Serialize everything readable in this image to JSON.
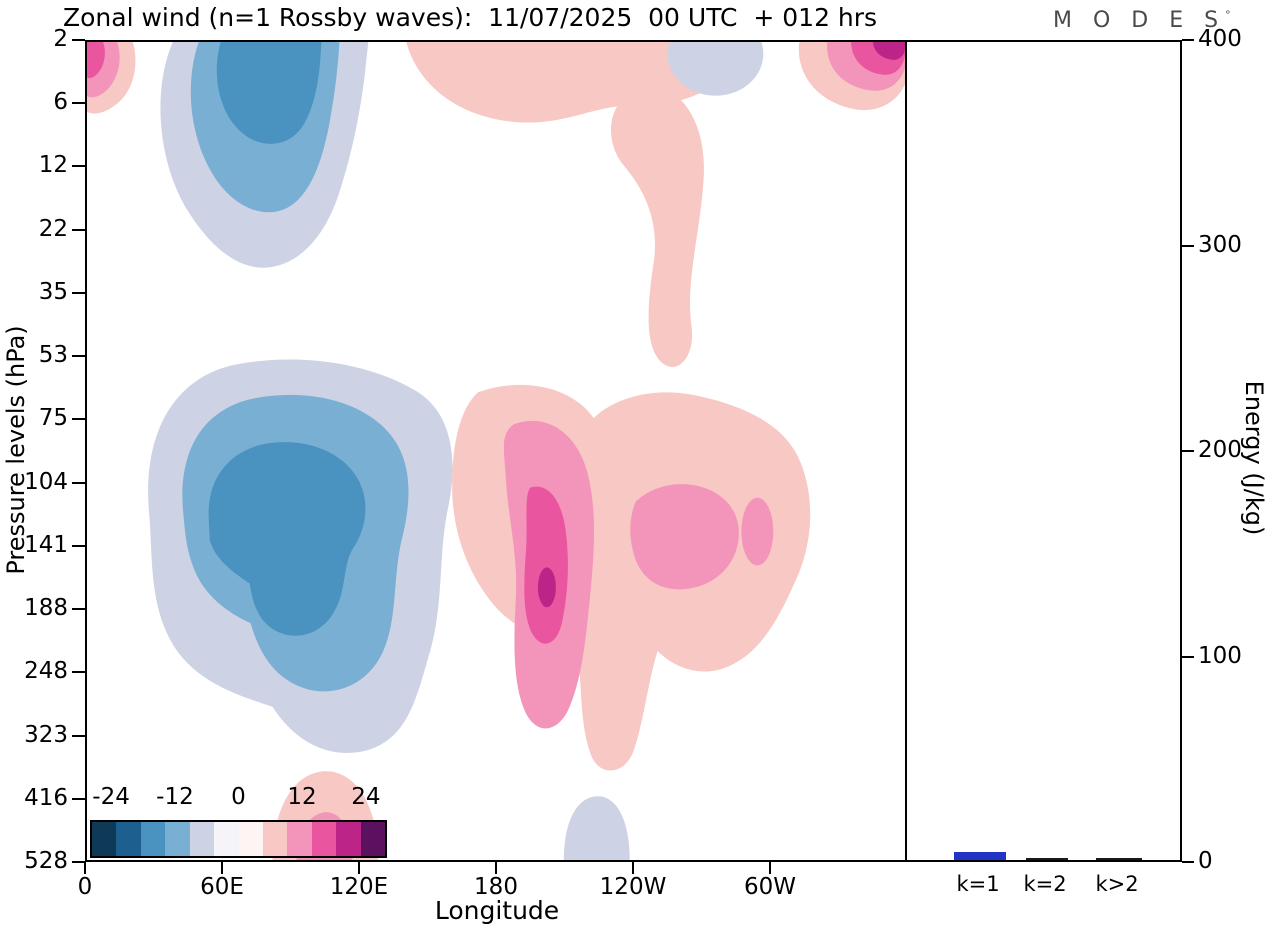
{
  "title": "Zonal wind (n=1 Rossby waves):  11/07/2025  00 UTC  + 012 hrs",
  "logo": {
    "text": "M O D E S",
    "mark": "°"
  },
  "chart_data": [
    {
      "type": "heatmap",
      "subtype": "filled-contour",
      "title": "Zonal wind (n=1 Rossby waves): 11/07/2025 00 UTC + 012 hrs",
      "xlabel": "Longitude",
      "ylabel": "Pressure levels (hPa)",
      "x_ticks": [
        "0",
        "60E",
        "120E",
        "180",
        "120W",
        "60W"
      ],
      "x_range_deg": [
        0,
        360
      ],
      "y_ticks": [
        "2",
        "6",
        "12",
        "22",
        "35",
        "53",
        "75",
        "104",
        "141",
        "188",
        "248",
        "323",
        "416",
        "528"
      ],
      "y_axis_note": "pressure levels in hPa, top=2 hPa, bottom=528 hPa, ticks equally spaced",
      "grid": false,
      "colorbar": {
        "tick_labels": [
          "-24",
          "-12",
          "0",
          "12",
          "24"
        ],
        "level_step": 6,
        "colors": [
          "#0e3a57",
          "#1d6090",
          "#4a92bf",
          "#79afd3",
          "#ced2e5",
          "#f5f5f9",
          "#fdf4f3",
          "#f8c8c4",
          "#f394ba",
          "#ea55a0",
          "#bc2488",
          "#5c1160"
        ]
      },
      "features": [
        {
          "sign": "negative",
          "region": "upper levels near 20E-120E, 2-22 hPa",
          "min_estimate": -20
        },
        {
          "sign": "negative",
          "region": "mid levels near 25E-160E, 53-323 hPa",
          "min_estimate": -22
        },
        {
          "sign": "positive",
          "region": "top-left corner near 0-10E, 2-6 hPa",
          "max_estimate": 20
        },
        {
          "sign": "positive",
          "region": "top band 145E-165W with tongue down to 35 hPa near 150W",
          "max_estimate": 10
        },
        {
          "sign": "positive",
          "region": "top-right near 45W-0, 2-6 hPa",
          "max_estimate": 26
        },
        {
          "sign": "positive",
          "region": "mid levels 160E-45W, 75-323 hPa, core near 170W at 141-188 hPa",
          "max_estimate": 26
        },
        {
          "sign": "positive",
          "region": "bottom edge near 85E-125E, 416-528 hPa",
          "max_estimate": 14
        },
        {
          "sign": "negative",
          "region": "bottom edge near 215E (145W), 470-528 hPa",
          "min_estimate": -8
        }
      ]
    },
    {
      "type": "bar",
      "categories": [
        "k=1",
        "k=2",
        "k>2"
      ],
      "values": [
        4,
        1,
        1
      ],
      "ylabel": "Energy (J/kg)",
      "ylim": [
        0,
        400
      ],
      "y_ticks": [
        "0",
        "100",
        "200",
        "300",
        "400"
      ],
      "bar_colors": [
        "#2134c6",
        "#1a1a1a",
        "#1a1a1a"
      ],
      "legend": "none"
    }
  ]
}
